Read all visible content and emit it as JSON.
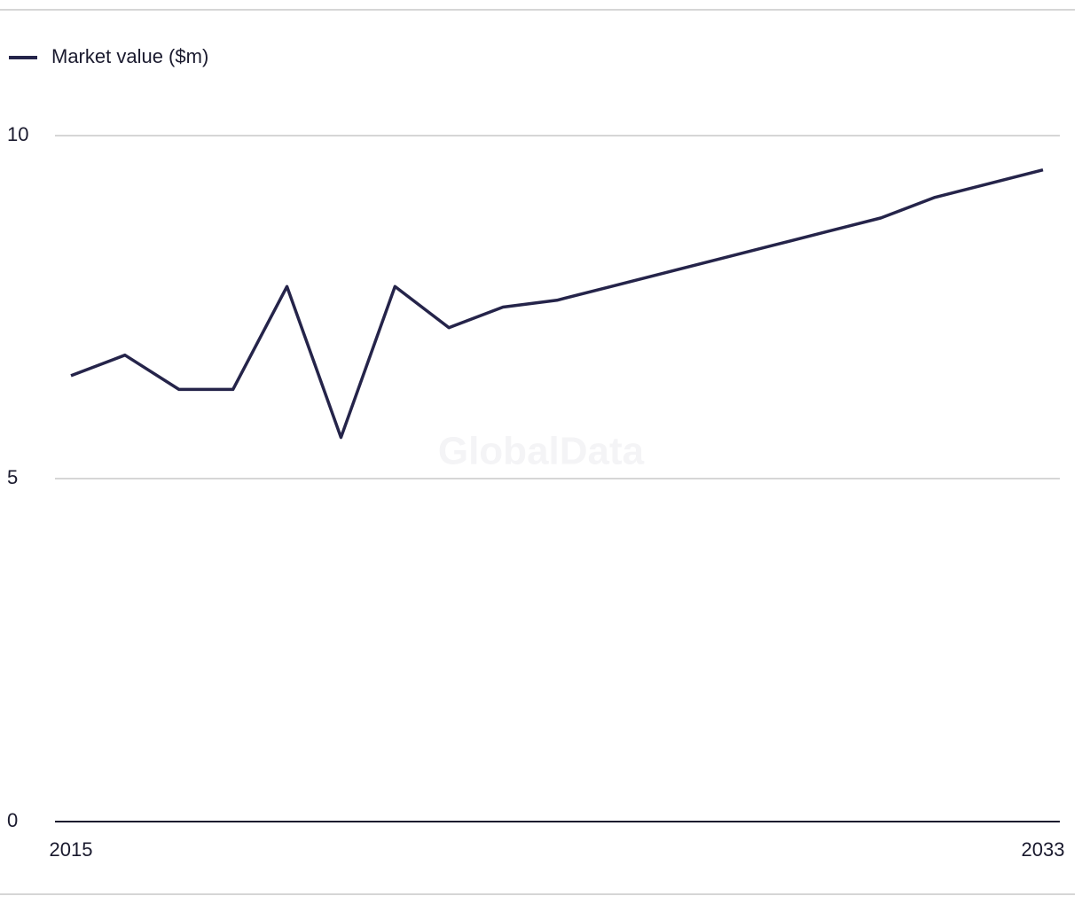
{
  "chart_data": {
    "type": "line",
    "watermark": "GlobalData",
    "x": [
      2015,
      2016,
      2017,
      2018,
      2019,
      2020,
      2021,
      2022,
      2023,
      2024,
      2025,
      2026,
      2027,
      2028,
      2029,
      2030,
      2031,
      2032,
      2033
    ],
    "series": [
      {
        "name": "Market value ($m)",
        "color": "#25244a",
        "values": [
          6.5,
          6.8,
          6.3,
          6.3,
          7.8,
          5.6,
          7.8,
          7.2,
          7.5,
          7.6,
          7.8,
          8.0,
          8.2,
          8.4,
          8.6,
          8.8,
          9.1,
          9.3,
          9.5
        ]
      }
    ],
    "xlim": [
      2015,
      2033
    ],
    "xticks": [
      2015,
      2033
    ],
    "ylim": [
      0,
      10
    ],
    "yticks": [
      0,
      5,
      10
    ],
    "grid": true,
    "legend": "top-left"
  }
}
